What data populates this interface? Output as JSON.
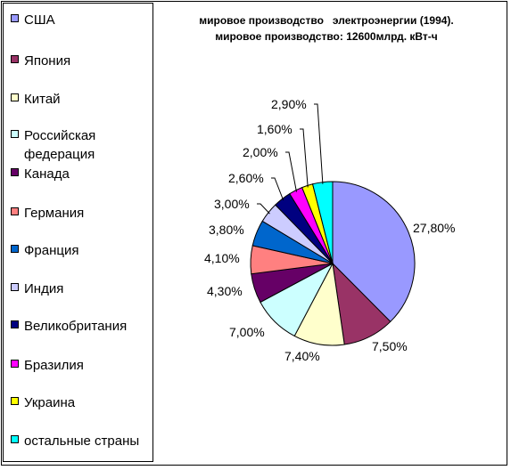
{
  "chart_data": {
    "type": "pie",
    "title_lines": [
      "мировое производство   электроэнергии (1994).",
      "мировое производство: 12600млрд. кВт-ч"
    ],
    "legend_position": "left",
    "slices": [
      {
        "name": "США",
        "value": 27.8,
        "label": "27,80%",
        "color": "#9999ff"
      },
      {
        "name": "Япония",
        "value": 7.5,
        "label": "7,50%",
        "color": "#993366"
      },
      {
        "name": "Китай",
        "value": 7.4,
        "label": "7,40%",
        "color": "#ffffcc"
      },
      {
        "name": "Российская федерация",
        "value": 7.0,
        "label": "7,00%",
        "color": "#ccffff"
      },
      {
        "name": "Канада",
        "value": 4.3,
        "label": "4,30%",
        "color": "#660066"
      },
      {
        "name": "Германия",
        "value": 4.1,
        "label": "4,10%",
        "color": "#ff8080"
      },
      {
        "name": "Франция",
        "value": 3.8,
        "label": "3,80%",
        "color": "#0066cc"
      },
      {
        "name": "Индия",
        "value": 3.0,
        "label": "3,00%",
        "color": "#ccccff"
      },
      {
        "name": "Великобритания",
        "value": 2.6,
        "label": "2,60%",
        "color": "#000080"
      },
      {
        "name": "Бразилия",
        "value": 2.0,
        "label": "2,00%",
        "color": "#ff00ff"
      },
      {
        "name": "Украина",
        "value": 1.6,
        "label": "1,60%",
        "color": "#ffff00"
      },
      {
        "name": "остальные страны",
        "value": 2.9,
        "label": "2,90%",
        "color": "#00ffff"
      }
    ]
  }
}
